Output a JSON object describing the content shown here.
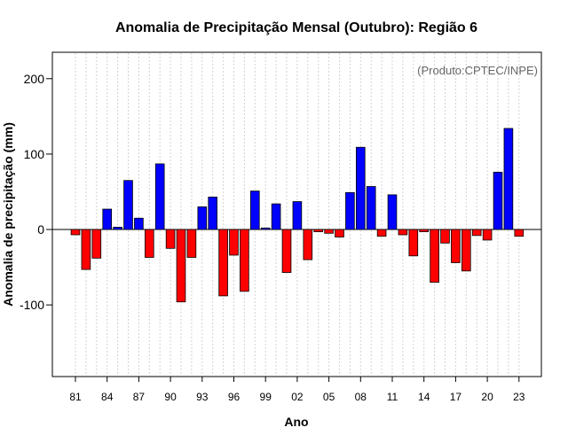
{
  "chart_data": {
    "type": "bar",
    "title": "Anomalia de Precipitação Mensal (Outubro): Região 6",
    "xlabel": "Ano",
    "ylabel": "Anomalia de precipitação (mm)",
    "credit": "(Produto:CPTEC/INPE)",
    "ylim": [
      -195,
      235
    ],
    "yticks": [
      -100,
      0,
      100,
      200
    ],
    "xtick_labels": [
      "81",
      "84",
      "87",
      "90",
      "93",
      "96",
      "99",
      "02",
      "05",
      "08",
      "11",
      "14",
      "17",
      "20",
      "23"
    ],
    "categories": [
      "1981",
      "1982",
      "1983",
      "1984",
      "1985",
      "1986",
      "1987",
      "1988",
      "1989",
      "1990",
      "1991",
      "1992",
      "1993",
      "1994",
      "1995",
      "1996",
      "1997",
      "1998",
      "1999",
      "2000",
      "2001",
      "2002",
      "2003",
      "2004",
      "2005",
      "2006",
      "2007",
      "2008",
      "2009",
      "2010",
      "2011",
      "2012",
      "2013",
      "2014",
      "2015",
      "2016",
      "2017",
      "2018",
      "2019",
      "2020",
      "2021",
      "2022",
      "2023"
    ],
    "values": [
      -7,
      -53,
      -38,
      27,
      3,
      65,
      15,
      -37,
      87,
      -25,
      -96,
      -37,
      30,
      43,
      -88,
      -34,
      -82,
      51,
      2,
      34,
      -57,
      37,
      -40,
      -3,
      -5,
      -10,
      49,
      109,
      57,
      -9,
      46,
      -7,
      -35,
      -3,
      -70,
      -18,
      -44,
      -55,
      -8,
      -14,
      76,
      134,
      -9
    ],
    "colors": {
      "positive": "#0000ff",
      "negative": "#ff0000",
      "zero_line": "#000000",
      "grid": "#d3d3d3"
    },
    "grid": true,
    "legend": "none"
  }
}
